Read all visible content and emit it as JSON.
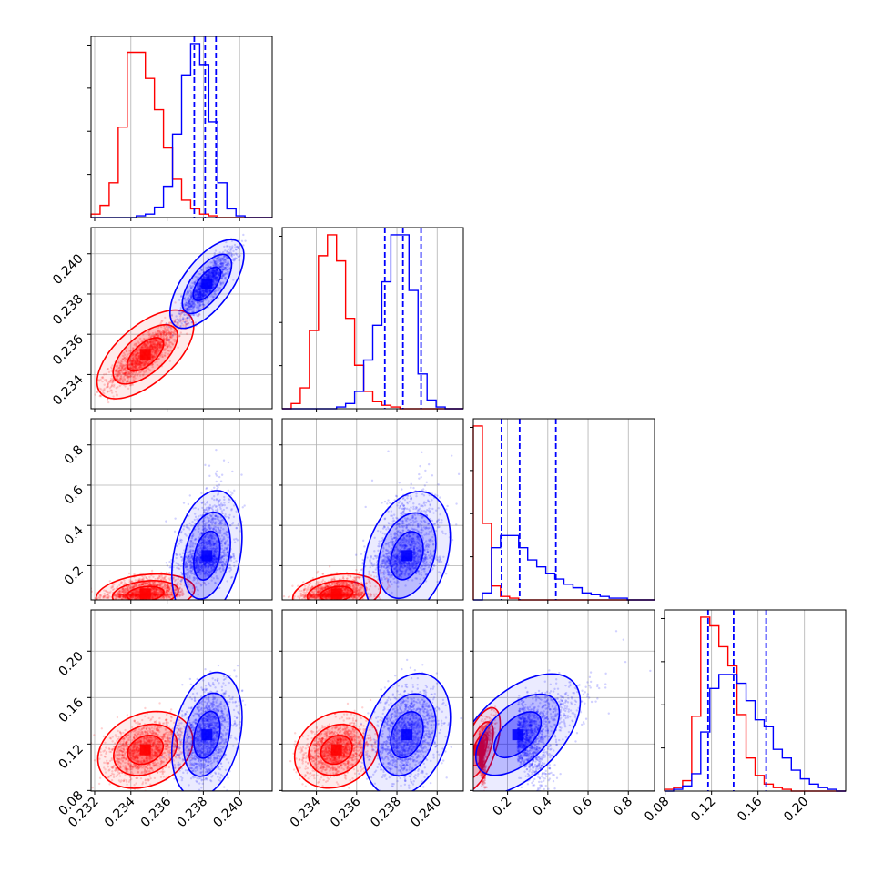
{
  "colors": {
    "red": "#ff0000",
    "blue": "#0000ff",
    "grid": "#b0b0b0",
    "axis": "#000000"
  },
  "chart_data": {
    "type": "corner",
    "parameters": 4,
    "grid": true,
    "axis_labels": [
      "",
      "",
      "",
      ""
    ],
    "ranges": [
      [
        0.2318,
        0.2418
      ],
      [
        0.2323,
        0.2413
      ],
      [
        0.03,
        0.93
      ],
      [
        0.0795,
        0.2355
      ]
    ],
    "ticks": [
      [
        "0.232",
        "0.234",
        "0.236",
        "0.238",
        "0.240"
      ],
      [
        "0.234",
        "0.236",
        "0.238",
        "0.240"
      ],
      [
        "0.2",
        "0.4",
        "0.6",
        "0.8"
      ],
      [
        "0.08",
        "0.12",
        "0.16",
        "0.20"
      ]
    ],
    "tick_values": [
      [
        0.232,
        0.234,
        0.236,
        0.238,
        0.24
      ],
      [
        0.234,
        0.236,
        0.238,
        0.24
      ],
      [
        0.2,
        0.4,
        0.6,
        0.8
      ],
      [
        0.08,
        0.12,
        0.16,
        0.2
      ]
    ],
    "quantiles_blue": [
      [
        0.2375,
        0.2381,
        0.2387
      ],
      [
        0.2374,
        0.2383,
        0.2392
      ],
      [
        0.17,
        0.26,
        0.44
      ],
      [
        0.117,
        0.139,
        0.167
      ]
    ],
    "histograms": [
      {
        "bins": [
          0.2318,
          0.2418
        ],
        "red": [
          2,
          7,
          20,
          52,
          95,
          95,
          80,
          62,
          40,
          22,
          10,
          5,
          2,
          1,
          0,
          0,
          0,
          0,
          0,
          0
        ],
        "blue": [
          0,
          0,
          0,
          0,
          0,
          1,
          2,
          6,
          18,
          48,
          82,
          100,
          88,
          55,
          20,
          5,
          1,
          0,
          0,
          0
        ]
      },
      {
        "bins": [
          0.2323,
          0.2413
        ],
        "red": [
          0,
          3,
          12,
          45,
          88,
          100,
          85,
          52,
          25,
          10,
          4,
          2,
          1,
          0,
          0,
          0,
          0,
          0,
          0,
          0
        ],
        "blue": [
          0,
          0,
          0,
          0,
          0,
          0,
          1,
          3,
          10,
          28,
          48,
          73,
          100,
          100,
          68,
          20,
          5,
          1,
          0,
          0
        ]
      },
      {
        "bins": [
          0.03,
          0.93
        ],
        "red": [
          100,
          44,
          8,
          2,
          1,
          0,
          0,
          0,
          0,
          0,
          0,
          0,
          0,
          0,
          0,
          0,
          0,
          0,
          0,
          0
        ],
        "blue": [
          0,
          4,
          30,
          37,
          37,
          30,
          23,
          19,
          15,
          12,
          9,
          7,
          4,
          3,
          2,
          1,
          1,
          0,
          0,
          0
        ]
      },
      {
        "bins": [
          0.0795,
          0.2355
        ],
        "red": [
          1,
          2,
          6,
          43,
          100,
          95,
          83,
          72,
          44,
          19,
          9,
          4,
          2,
          1,
          0,
          0,
          0,
          0,
          0,
          0
        ],
        "blue": [
          0,
          1,
          3,
          10,
          34,
          59,
          67,
          67,
          62,
          52,
          41,
          37,
          24,
          19,
          12,
          7,
          4,
          2,
          1,
          0
        ]
      }
    ],
    "joint": {
      "red": {
        "mean": [
          0.2348,
          0.235,
          0.06,
          0.115
        ],
        "sd": [
          0.001,
          0.0008,
          0.03,
          0.012
        ]
      },
      "blue": {
        "mean": [
          0.2382,
          0.2385,
          0.25,
          0.128
        ],
        "sd": [
          0.0007,
          0.0008,
          0.12,
          0.02
        ]
      },
      "corr": {
        "0-1": 0.85,
        "0-2": 0.3,
        "1-2": 0.3,
        "0-3": 0.3,
        "1-3": 0.3,
        "2-3": 0.75
      }
    }
  }
}
